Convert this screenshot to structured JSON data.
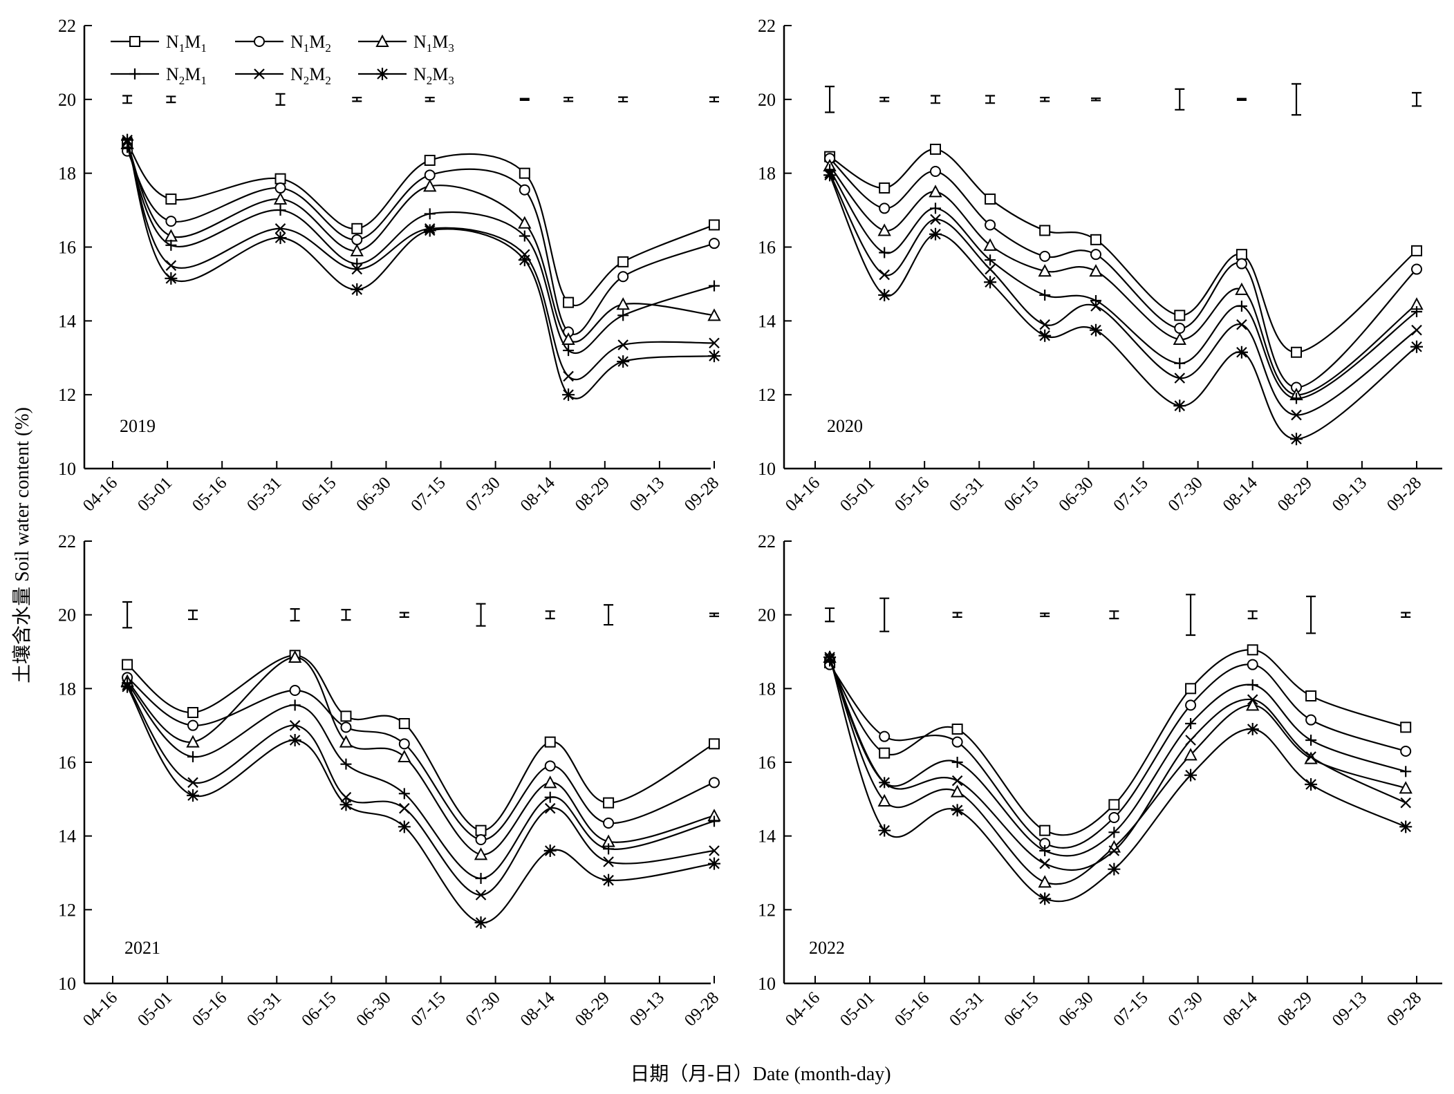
{
  "figure": {
    "ylabel": "土壤含水量 Soil water content (%)",
    "xlabel": "日期（月-日）Date (month-day)"
  },
  "colors": {
    "ink": "#000000",
    "background": "#ffffff"
  },
  "legend": {
    "placement": "top-left of first panel",
    "entries": [
      {
        "base": "N",
        "sub1": "1",
        "mid": "M",
        "sub2": "1",
        "marker": "square"
      },
      {
        "base": "N",
        "sub1": "1",
        "mid": "M",
        "sub2": "2",
        "marker": "circle"
      },
      {
        "base": "N",
        "sub1": "1",
        "mid": "M",
        "sub2": "3",
        "marker": "triangle"
      },
      {
        "base": "N",
        "sub1": "2",
        "mid": "M",
        "sub2": "1",
        "marker": "plus"
      },
      {
        "base": "N",
        "sub1": "2",
        "mid": "M",
        "sub2": "2",
        "marker": "cross"
      },
      {
        "base": "N",
        "sub1": "2",
        "mid": "M",
        "sub2": "3",
        "marker": "asterisk"
      }
    ]
  },
  "chart_data": [
    {
      "type": "line",
      "label": "2019",
      "x_ticks": [
        "04-16",
        "05-01",
        "05-16",
        "05-31",
        "06-15",
        "06-30",
        "07-15",
        "07-30",
        "08-14",
        "08-29",
        "09-13",
        "09-28"
      ],
      "ylim": [
        10,
        22
      ],
      "y_ticks": [
        10,
        12,
        14,
        16,
        18,
        20,
        22
      ],
      "x_points": [
        "04-20",
        "05-02",
        "06-01",
        "06-22",
        "07-12",
        "08-07",
        "08-19",
        "09-03",
        "09-28"
      ],
      "series": [
        {
          "values": [
            18.8,
            17.3,
            17.85,
            16.5,
            18.35,
            18.0,
            14.5,
            15.6,
            16.6
          ]
        },
        {
          "values": [
            18.6,
            16.7,
            17.6,
            16.2,
            17.95,
            17.55,
            13.7,
            15.2,
            16.1
          ]
        },
        {
          "values": [
            18.8,
            16.3,
            17.3,
            15.9,
            17.65,
            16.65,
            13.5,
            14.45,
            14.15
          ]
        },
        {
          "values": [
            18.7,
            16.05,
            17.0,
            15.55,
            16.9,
            16.3,
            13.2,
            14.15,
            14.95
          ]
        },
        {
          "values": [
            18.85,
            15.5,
            16.5,
            15.4,
            16.5,
            15.8,
            12.5,
            13.35,
            13.4
          ]
        },
        {
          "values": [
            18.9,
            15.15,
            16.25,
            14.85,
            16.45,
            15.65,
            12.0,
            12.9,
            13.05
          ]
        }
      ],
      "error_bars": [
        {
          "x": "04-20",
          "center": 20.0,
          "half": 0.1
        },
        {
          "x": "05-02",
          "center": 20.0,
          "half": 0.08
        },
        {
          "x": "06-01",
          "center": 20.0,
          "half": 0.15
        },
        {
          "x": "06-22",
          "center": 20.0,
          "half": 0.05
        },
        {
          "x": "07-12",
          "center": 20.0,
          "half": 0.05
        },
        {
          "x": "08-07",
          "center": 20.0,
          "half": 0.02
        },
        {
          "x": "08-19",
          "center": 20.0,
          "half": 0.05
        },
        {
          "x": "09-03",
          "center": 20.0,
          "half": 0.06
        },
        {
          "x": "09-28",
          "center": 20.0,
          "half": 0.06
        }
      ]
    },
    {
      "type": "line",
      "label": "2020",
      "x_ticks": [
        "04-16",
        "05-01",
        "05-16",
        "05-31",
        "06-15",
        "06-30",
        "07-15",
        "07-30",
        "08-14",
        "08-29",
        "09-13",
        "09-28"
      ],
      "ylim": [
        10,
        22
      ],
      "y_ticks": [
        10,
        12,
        14,
        16,
        18,
        20,
        22
      ],
      "x_points": [
        "04-20",
        "05-05",
        "05-19",
        "06-03",
        "06-18",
        "07-02",
        "07-25",
        "08-11",
        "08-26",
        "09-28"
      ],
      "series": [
        {
          "values": [
            18.45,
            17.6,
            18.65,
            17.3,
            16.45,
            16.2,
            14.15,
            15.8,
            13.15,
            15.9
          ]
        },
        {
          "values": [
            18.4,
            17.05,
            18.05,
            16.6,
            15.75,
            15.8,
            13.8,
            15.55,
            12.2,
            15.4
          ]
        },
        {
          "values": [
            18.2,
            16.45,
            17.5,
            16.05,
            15.35,
            15.35,
            13.5,
            14.85,
            12.0,
            14.45
          ]
        },
        {
          "values": [
            18.1,
            15.85,
            17.05,
            15.65,
            14.7,
            14.55,
            12.85,
            14.4,
            11.9,
            14.25
          ]
        },
        {
          "values": [
            18.0,
            15.25,
            16.75,
            15.4,
            13.9,
            14.4,
            12.45,
            13.9,
            11.45,
            13.75
          ]
        },
        {
          "values": [
            17.95,
            14.7,
            16.35,
            15.05,
            13.6,
            13.75,
            11.7,
            13.15,
            10.8,
            13.3
          ]
        }
      ],
      "error_bars": [
        {
          "x": "04-20",
          "center": 20.0,
          "half": 0.35
        },
        {
          "x": "05-05",
          "center": 20.0,
          "half": 0.05
        },
        {
          "x": "05-19",
          "center": 20.0,
          "half": 0.1
        },
        {
          "x": "06-03",
          "center": 20.0,
          "half": 0.1
        },
        {
          "x": "06-18",
          "center": 20.0,
          "half": 0.05
        },
        {
          "x": "07-02",
          "center": 20.0,
          "half": 0.03
        },
        {
          "x": "07-25",
          "center": 20.0,
          "half": 0.28
        },
        {
          "x": "08-11",
          "center": 20.0,
          "half": 0.02
        },
        {
          "x": "08-26",
          "center": 20.0,
          "half": 0.42
        },
        {
          "x": "09-28",
          "center": 20.0,
          "half": 0.18
        }
      ]
    },
    {
      "type": "line",
      "label": "2021",
      "x_ticks": [
        "04-16",
        "05-01",
        "05-16",
        "05-31",
        "06-15",
        "06-30",
        "07-15",
        "07-30",
        "08-14",
        "08-29",
        "09-13",
        "09-28"
      ],
      "ylim": [
        10,
        22
      ],
      "y_ticks": [
        10,
        12,
        14,
        16,
        18,
        20,
        22
      ],
      "x_points": [
        "04-20",
        "05-08",
        "06-05",
        "06-19",
        "07-05",
        "07-26",
        "08-14",
        "08-30",
        "09-28"
      ],
      "series": [
        {
          "values": [
            18.65,
            17.35,
            18.9,
            17.25,
            17.05,
            14.15,
            16.55,
            14.9,
            16.5
          ]
        },
        {
          "values": [
            18.3,
            17.0,
            17.95,
            16.95,
            16.5,
            13.9,
            15.9,
            14.35,
            15.45
          ]
        },
        {
          "values": [
            18.2,
            16.55,
            18.85,
            16.55,
            16.15,
            13.5,
            15.45,
            13.85,
            14.55
          ]
        },
        {
          "values": [
            18.15,
            16.15,
            17.55,
            15.95,
            15.15,
            12.85,
            15.05,
            13.65,
            14.4
          ]
        },
        {
          "values": [
            18.1,
            15.45,
            17.0,
            15.05,
            14.75,
            12.4,
            14.75,
            13.3,
            13.6
          ]
        },
        {
          "values": [
            18.05,
            15.1,
            16.6,
            14.85,
            14.25,
            11.65,
            13.6,
            12.8,
            13.25
          ]
        }
      ],
      "error_bars": [
        {
          "x": "04-20",
          "center": 20.0,
          "half": 0.35
        },
        {
          "x": "05-08",
          "center": 20.0,
          "half": 0.12
        },
        {
          "x": "06-05",
          "center": 20.0,
          "half": 0.16
        },
        {
          "x": "06-19",
          "center": 20.0,
          "half": 0.14
        },
        {
          "x": "07-05",
          "center": 20.0,
          "half": 0.06
        },
        {
          "x": "07-26",
          "center": 20.0,
          "half": 0.3
        },
        {
          "x": "08-14",
          "center": 20.0,
          "half": 0.1
        },
        {
          "x": "08-30",
          "center": 20.0,
          "half": 0.27
        },
        {
          "x": "09-28",
          "center": 20.0,
          "half": 0.04
        }
      ]
    },
    {
      "type": "line",
      "label": "2022",
      "x_ticks": [
        "04-16",
        "05-01",
        "05-16",
        "05-31",
        "06-15",
        "06-30",
        "07-15",
        "07-30",
        "08-14",
        "08-29",
        "09-13",
        "09-28"
      ],
      "ylim": [
        10,
        22
      ],
      "y_ticks": [
        10,
        12,
        14,
        16,
        18,
        20,
        22
      ],
      "x_points": [
        "04-20",
        "05-05",
        "05-25",
        "06-18",
        "07-07",
        "07-28",
        "08-14",
        "08-30",
        "09-25"
      ],
      "series": [
        {
          "values": [
            18.7,
            16.25,
            16.9,
            14.15,
            14.85,
            18.0,
            19.05,
            17.8,
            16.95
          ]
        },
        {
          "values": [
            18.65,
            16.7,
            16.55,
            13.8,
            14.5,
            17.55,
            18.65,
            17.15,
            16.3
          ]
        },
        {
          "values": [
            18.85,
            14.95,
            15.2,
            12.75,
            13.7,
            16.2,
            17.55,
            16.1,
            15.3
          ]
        },
        {
          "values": [
            18.75,
            15.45,
            16.0,
            13.6,
            14.1,
            17.05,
            18.1,
            16.6,
            15.75
          ]
        },
        {
          "values": [
            18.8,
            15.45,
            15.5,
            13.25,
            13.6,
            16.6,
            17.7,
            16.15,
            14.9
          ]
        },
        {
          "values": [
            18.85,
            14.15,
            14.7,
            12.3,
            13.1,
            15.65,
            16.9,
            15.4,
            14.25
          ]
        }
      ],
      "error_bars": [
        {
          "x": "04-20",
          "center": 20.0,
          "half": 0.18
        },
        {
          "x": "05-05",
          "center": 20.0,
          "half": 0.45
        },
        {
          "x": "05-25",
          "center": 20.0,
          "half": 0.06
        },
        {
          "x": "06-18",
          "center": 20.0,
          "half": 0.04
        },
        {
          "x": "07-07",
          "center": 20.0,
          "half": 0.1
        },
        {
          "x": "07-28",
          "center": 20.0,
          "half": 0.55
        },
        {
          "x": "08-14",
          "center": 20.0,
          "half": 0.1
        },
        {
          "x": "08-30",
          "center": 20.0,
          "half": 0.5
        },
        {
          "x": "09-25",
          "center": 20.0,
          "half": 0.06
        }
      ]
    }
  ]
}
